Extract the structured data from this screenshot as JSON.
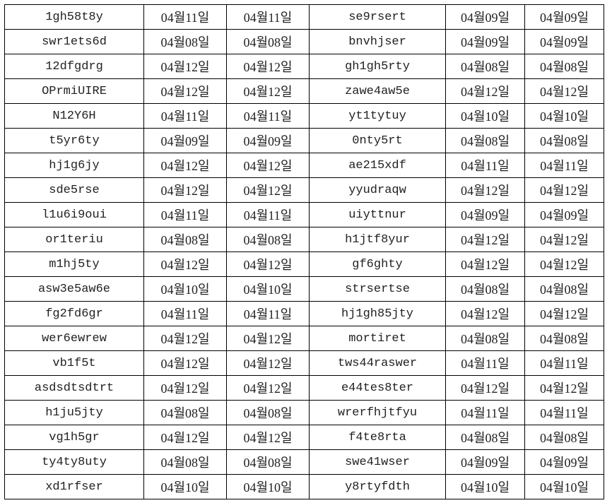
{
  "sheet": {
    "rows": [
      [
        "1gh58t8y",
        "04월11일",
        "04월11일",
        "se9rsert",
        "04월09일",
        "04월09일"
      ],
      [
        "swr1ets6d",
        "04월08일",
        "04월08일",
        "bnvhjser",
        "04월09일",
        "04월09일"
      ],
      [
        "12dfgdrg",
        "04월12일",
        "04월12일",
        "gh1gh5rty",
        "04월08일",
        "04월08일"
      ],
      [
        "OPrmiUIRE",
        "04월12일",
        "04월12일",
        "zawe4aw5e",
        "04월12일",
        "04월12일"
      ],
      [
        "N12Y6H",
        "04월11일",
        "04월11일",
        "yt1tytuy",
        "04월10일",
        "04월10일"
      ],
      [
        "t5yr6ty",
        "04월09일",
        "04월09일",
        "0nty5rt",
        "04월08일",
        "04월08일"
      ],
      [
        "hj1g6jy",
        "04월12일",
        "04월12일",
        "ae215xdf",
        "04월11일",
        "04월11일"
      ],
      [
        "sde5rse",
        "04월12일",
        "04월12일",
        "yyudraqw",
        "04월12일",
        "04월12일"
      ],
      [
        "l1u6i9oui",
        "04월11일",
        "04월11일",
        "uiyttnur",
        "04월09일",
        "04월09일"
      ],
      [
        "or1teriu",
        "04월08일",
        "04월08일",
        "h1jtf8yur",
        "04월12일",
        "04월12일"
      ],
      [
        "m1hj5ty",
        "04월12일",
        "04월12일",
        "gf6ghty",
        "04월12일",
        "04월12일"
      ],
      [
        "asw3e5aw6e",
        "04월10일",
        "04월10일",
        "strsertse",
        "04월08일",
        "04월08일"
      ],
      [
        "fg2fd6gr",
        "04월11일",
        "04월11일",
        "hj1gh85jty",
        "04월12일",
        "04월12일"
      ],
      [
        "wer6ewrew",
        "04월12일",
        "04월12일",
        "mortiret",
        "04월08일",
        "04월08일"
      ],
      [
        "vb1f5t",
        "04월12일",
        "04월12일",
        "tws44raswer",
        "04월11일",
        "04월11일"
      ],
      [
        "asdsdtsdtrt",
        "04월12일",
        "04월12일",
        "e44tes8ter",
        "04월12일",
        "04월12일"
      ],
      [
        "h1ju5jty",
        "04월08일",
        "04월08일",
        "wrerfhjtfyu",
        "04월11일",
        "04월11일"
      ],
      [
        "vg1h5gr",
        "04월12일",
        "04월12일",
        "f4te8rta",
        "04월08일",
        "04월08일"
      ],
      [
        "ty4ty8uty",
        "04월08일",
        "04월08일",
        "swe41wser",
        "04월09일",
        "04월09일"
      ],
      [
        "xd1rfser",
        "04월10일",
        "04월10일",
        "y8rtyfdth",
        "04월10일",
        "04월10일"
      ]
    ]
  }
}
